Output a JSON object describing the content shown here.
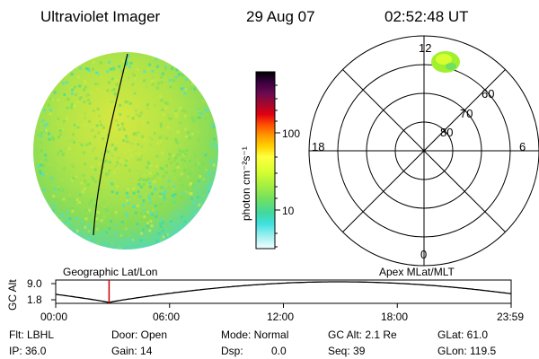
{
  "header": {
    "title": "Ultraviolet Imager",
    "date": "29 Aug 07",
    "time": "02:52:48 UT"
  },
  "colorbar": {
    "unit_label": "photon cm⁻²s⁻¹",
    "scale": "log",
    "ticks": [
      "100",
      "10"
    ],
    "colors": [
      "#000000",
      "#2a0030",
      "#5a0a4a",
      "#8a0a30",
      "#c00020",
      "#ff0000",
      "#ff6000",
      "#ffa000",
      "#ffd000",
      "#ffff40",
      "#d8ff30",
      "#a8f040",
      "#70e060",
      "#40d8a0",
      "#40e0e0",
      "#a0f0f0",
      "#e0ffff",
      "#ffffff"
    ]
  },
  "polar": {
    "lat_labels": [
      "80",
      "70",
      "60"
    ],
    "mlt_labels": {
      "top": "12",
      "bottom": "0",
      "left": "18",
      "right": "6"
    }
  },
  "timeline": {
    "y_label": "GC Alt",
    "y_ticks": [
      "9.0",
      "1.8"
    ],
    "left_title": "Geographic Lat/Lon",
    "right_title": "Apex MLat/MLT",
    "x_ticks": [
      "00:00",
      "06:00",
      "12:00",
      "18:00",
      "23:59"
    ],
    "current_time_fraction": 0.1172
  },
  "footer": {
    "filter": "Flt: LBHL",
    "ip": "IP: 36.0",
    "door": "Door: Open",
    "gain": "Gain: 14",
    "mode": "Mode: Normal",
    "dsp": "Dsp:",
    "dsp_value": "0.0",
    "gc_alt": "GC Alt: 2.1 Re",
    "seq": "Seq: 39",
    "glat": "GLat:  61.0",
    "glon": "GLon: 119.5"
  },
  "colors": {
    "disk_base": "#a8e050",
    "disk_edge": "#50e0c0",
    "hotspot": "#a0f030",
    "timeline_marker": "#cc0000"
  }
}
